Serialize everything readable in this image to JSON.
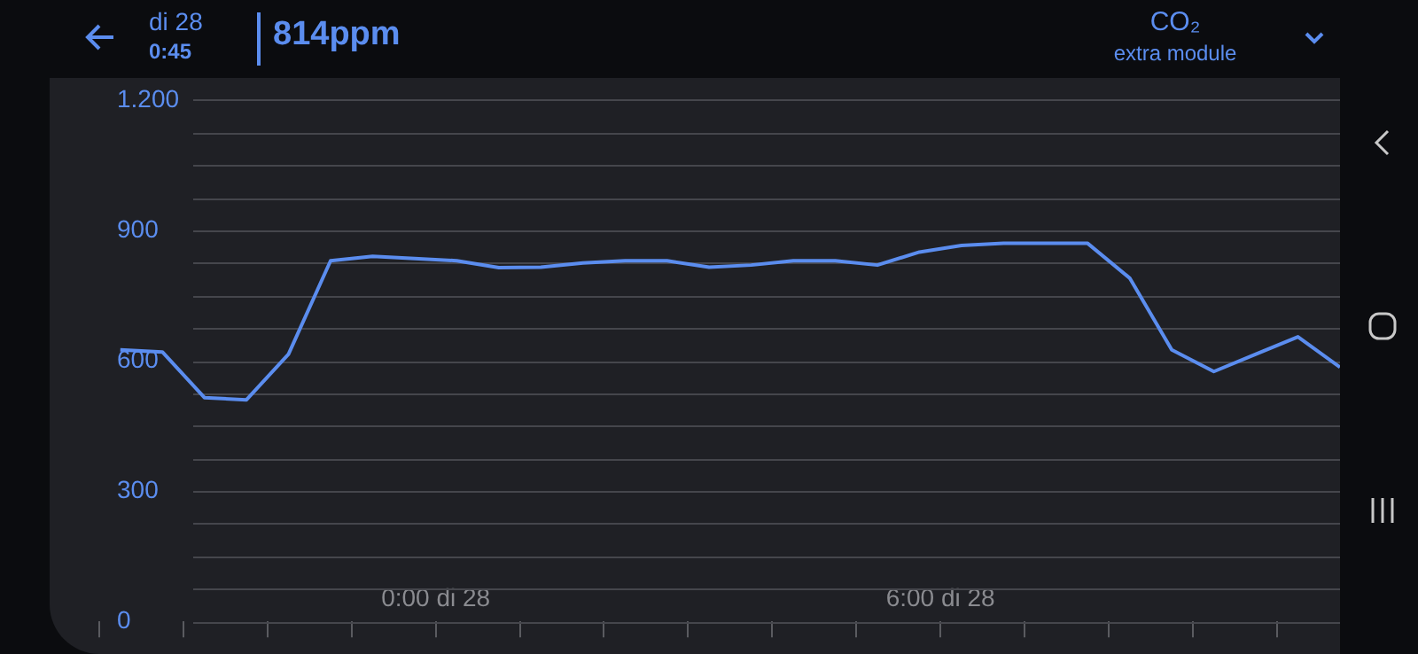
{
  "chart_data": {
    "type": "line",
    "title": "CO₂",
    "subtitle": "extra module",
    "annotations": [
      "di 28",
      "0:45",
      "814ppm"
    ],
    "categories": [
      null,
      null,
      null,
      null,
      null,
      null,
      null,
      null,
      null,
      null,
      null,
      null,
      null,
      null,
      null,
      null,
      "0:00 di 28",
      null,
      null,
      null,
      null,
      null,
      null,
      null,
      null,
      null,
      null,
      null,
      null,
      null,
      null,
      null,
      null,
      null,
      null,
      null,
      null,
      null,
      null,
      null,
      "6:00 di 28",
      null,
      null,
      null,
      null,
      null,
      null,
      null,
      null,
      null,
      null,
      null,
      null,
      null,
      null,
      null,
      null,
      null,
      null,
      null
    ],
    "series": [
      {
        "color": "#5b8def",
        "values": [
          null,
          625,
          null,
          620,
          null,
          515,
          null,
          510,
          null,
          615,
          null,
          830,
          null,
          840,
          null,
          835,
          null,
          830,
          null,
          814,
          null,
          815,
          null,
          825,
          null,
          830,
          null,
          830,
          null,
          815,
          null,
          820,
          null,
          830,
          null,
          830,
          null,
          820,
          null,
          850,
          null,
          865,
          null,
          870,
          null,
          870,
          null,
          870,
          null,
          790,
          null,
          625,
          null,
          575,
          null,
          615,
          null,
          655,
          null,
          585
        ]
      }
    ],
    "ylim": [
      0,
      1200
    ],
    "yticks": [
      0,
      {
        "value": 75,
        "label": null
      },
      {
        "value": 150,
        "label": null
      },
      {
        "value": 225,
        "label": null
      },
      300,
      {
        "value": 375,
        "label": null
      },
      {
        "value": 450,
        "label": null
      },
      {
        "value": 525,
        "label": null
      },
      600,
      {
        "value": 675,
        "label": null
      },
      {
        "value": 750,
        "label": null
      },
      {
        "value": 825,
        "label": null
      },
      900,
      {
        "value": 975,
        "label": null
      },
      {
        "value": 1050,
        "label": null
      },
      {
        "value": 1125,
        "label": null
      },
      {
        "value": 1200,
        "label": "1.200"
      }
    ],
    "grid": "y"
  }
}
